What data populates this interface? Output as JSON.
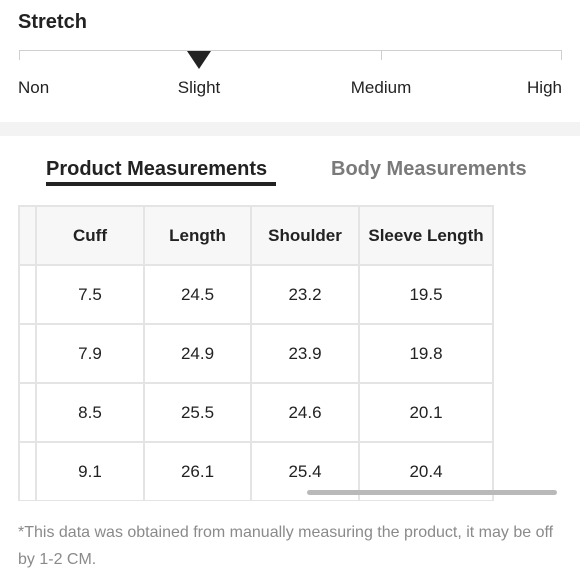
{
  "stretch": {
    "title": "Stretch",
    "levels": [
      "Non",
      "Slight",
      "Medium",
      "High"
    ],
    "selected": "Slight",
    "selected_index": 1
  },
  "tabs": [
    {
      "label": "Product Measurements",
      "active": true
    },
    {
      "label": "Body Measurements",
      "active": false
    }
  ],
  "table": {
    "columns": [
      "",
      "Cuff",
      "Length",
      "Shoulder",
      "Sleeve Length"
    ],
    "rows": [
      [
        "",
        "7.5",
        "24.5",
        "23.2",
        "19.5"
      ],
      [
        "",
        "7.9",
        "24.9",
        "23.9",
        "19.8"
      ],
      [
        "",
        "8.5",
        "25.5",
        "24.6",
        "20.1"
      ],
      [
        "",
        "9.1",
        "26.1",
        "25.4",
        "20.4"
      ]
    ]
  },
  "note": "*This data was obtained from manually measuring the product, it may be off by 1-2 CM.",
  "colors": {
    "text": "#222222",
    "muted": "#7a7a7a",
    "border": "#e4e4e4",
    "header_bg": "#f7f7f7"
  }
}
